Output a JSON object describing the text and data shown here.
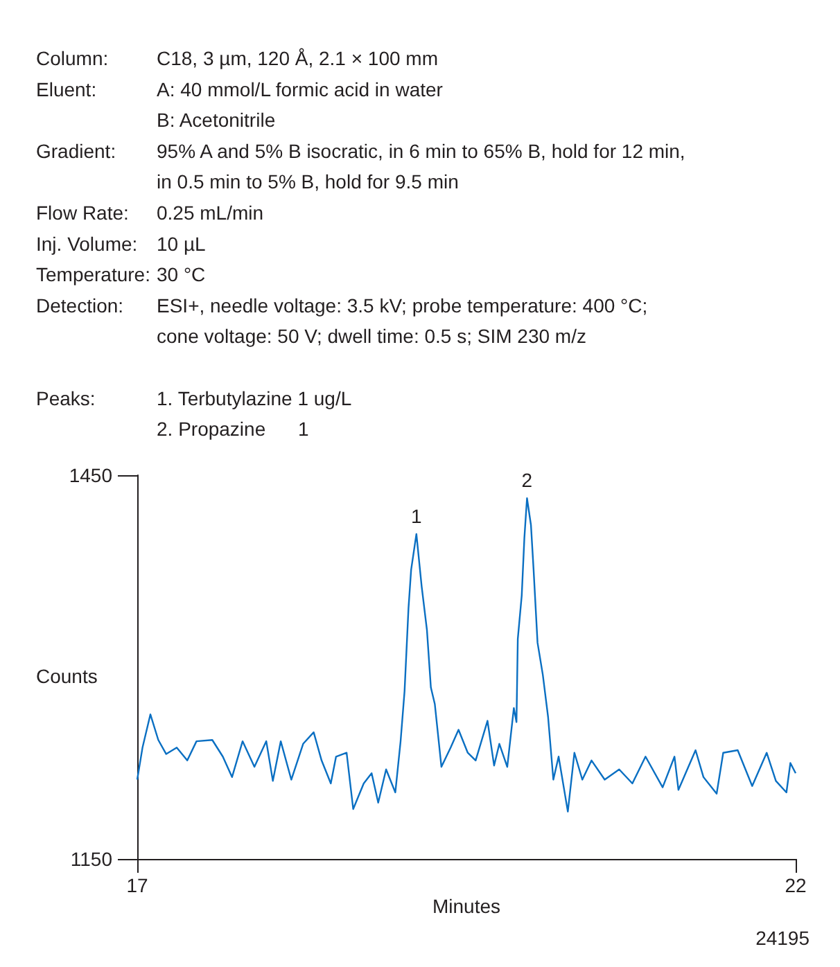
{
  "chart_data": {
    "type": "line",
    "xlabel": "Minutes",
    "ylabel": "Counts",
    "xlim": [
      17,
      22
    ],
    "ylim": [
      1150,
      1450
    ],
    "xticks": [
      17,
      22
    ],
    "yticks": [
      1150,
      1450
    ],
    "grid": false,
    "marker": "none",
    "line_style": "solid",
    "annotations": [
      "Column:\tC18, 3 µm, 120 Å, 2.1 × 100 mm",
      "Eluent:\tA: 40 mmol/L formic acid in water",
      "\tB: Acetonitrile",
      "Gradient:\t95% A and 5% B isocratic, in 6 min to 65% B, hold for 12 min,",
      "\tin 0.5 min to 5% B, hold for 9.5 min",
      "Flow Rate:\t0.25 mL/min",
      "Inj. Volume:\t10 µL",
      "Temperature:\t30 °C",
      "Detection:\tESI+, needle voltage: 3.5 kV; probe temperature: 400 °C;",
      "\tcone voltage: 50 V; dwell time: 0.5 s; SIM 230 m/z",
      "Peaks:\t1. Terbutylazine 1 ug/L",
      "\t2. Propazine      1",
      "24195",
      {
        "text": "1",
        "x": 19.12,
        "y": 1404
      },
      {
        "text": "2",
        "x": 19.96,
        "y": 1432
      }
    ],
    "series": [
      {
        "color": "#0a6fc2",
        "x": [
          17.0,
          17.04,
          17.1,
          17.16,
          17.22,
          17.3,
          17.38,
          17.45,
          17.57,
          17.65,
          17.72,
          17.8,
          17.89,
          17.98,
          18.03,
          18.09,
          18.17,
          18.26,
          18.34,
          18.4,
          18.47,
          18.51,
          18.59,
          18.64,
          18.72,
          18.78,
          18.83,
          18.89,
          18.96,
          19.0,
          19.03,
          19.06,
          19.08,
          19.12,
          19.16,
          19.2,
          19.23,
          19.26,
          19.31,
          19.38,
          19.44,
          19.51,
          19.57,
          19.66,
          19.71,
          19.75,
          19.81,
          19.86,
          19.88,
          19.89,
          19.92,
          19.94,
          19.96,
          19.99,
          20.01,
          20.04,
          20.08,
          20.12,
          20.16,
          20.2,
          20.27,
          20.32,
          20.38,
          20.45,
          20.55,
          20.66,
          20.76,
          20.86,
          20.99,
          21.08,
          21.11,
          21.24,
          21.3,
          21.4,
          21.45,
          21.56,
          21.67,
          21.78,
          21.85,
          21.93,
          21.96,
          22.0
        ],
        "values": [
          1212,
          1237,
          1263,
          1243,
          1232,
          1237,
          1227,
          1242,
          1243,
          1230,
          1214,
          1242,
          1222,
          1242,
          1211,
          1242,
          1212,
          1240,
          1249,
          1227,
          1209,
          1230,
          1233,
          1189,
          1209,
          1217,
          1194,
          1220,
          1202,
          1242,
          1281,
          1346,
          1376,
          1404,
          1363,
          1329,
          1284,
          1271,
          1222,
          1237,
          1251,
          1233,
          1227,
          1258,
          1223,
          1240,
          1222,
          1268,
          1257,
          1322,
          1356,
          1401,
          1432,
          1411,
          1376,
          1319,
          1294,
          1261,
          1212,
          1230,
          1187,
          1233,
          1212,
          1227,
          1212,
          1220,
          1209,
          1230,
          1206,
          1230,
          1204,
          1235,
          1214,
          1201,
          1233,
          1235,
          1207,
          1233,
          1211,
          1202,
          1225,
          1217
        ]
      }
    ]
  }
}
